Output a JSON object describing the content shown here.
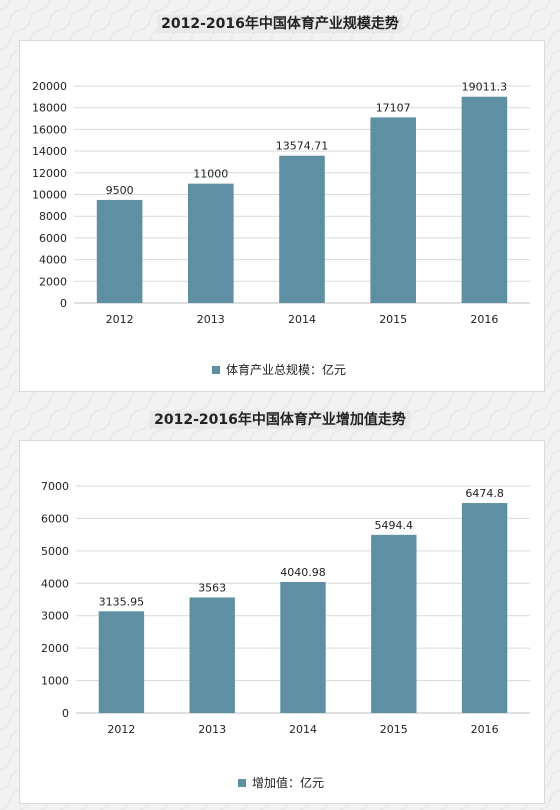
{
  "chart_data": [
    {
      "type": "bar",
      "title": "2012-2016年中国体育产业规模走势",
      "categories": [
        "2012",
        "2013",
        "2014",
        "2015",
        "2016"
      ],
      "values": [
        9500,
        11000,
        13574.71,
        17107,
        19011.3
      ],
      "value_labels": [
        "9500",
        "11000",
        "13574.71",
        "17107",
        "19011.3"
      ],
      "series": [
        {
          "name": "体育产业总规模：亿元",
          "values": [
            9500,
            11000,
            13574.71,
            17107,
            19011.3
          ]
        }
      ],
      "ylim": [
        0,
        20000
      ],
      "yticks": [
        0,
        2000,
        4000,
        6000,
        8000,
        10000,
        12000,
        14000,
        16000,
        18000,
        20000
      ],
      "grid": true,
      "legend": "bottom",
      "color": "#5f8fa3"
    },
    {
      "type": "bar",
      "title": "2012-2016年中国体育产业增加值走势",
      "categories": [
        "2012",
        "2013",
        "2014",
        "2015",
        "2016"
      ],
      "values": [
        3135.95,
        3563,
        4040.98,
        5494.4,
        6474.8
      ],
      "value_labels": [
        "3135.95",
        "3563",
        "4040.98",
        "5494.4",
        "6474.8"
      ],
      "series": [
        {
          "name": "增加值：亿元",
          "values": [
            3135.95,
            3563,
            4040.98,
            5494.4,
            6474.8
          ]
        }
      ],
      "ylim": [
        0,
        7000
      ],
      "yticks": [
        0,
        1000,
        2000,
        3000,
        4000,
        5000,
        6000,
        7000
      ],
      "grid": true,
      "legend": "bottom",
      "color": "#5f8fa3"
    }
  ]
}
